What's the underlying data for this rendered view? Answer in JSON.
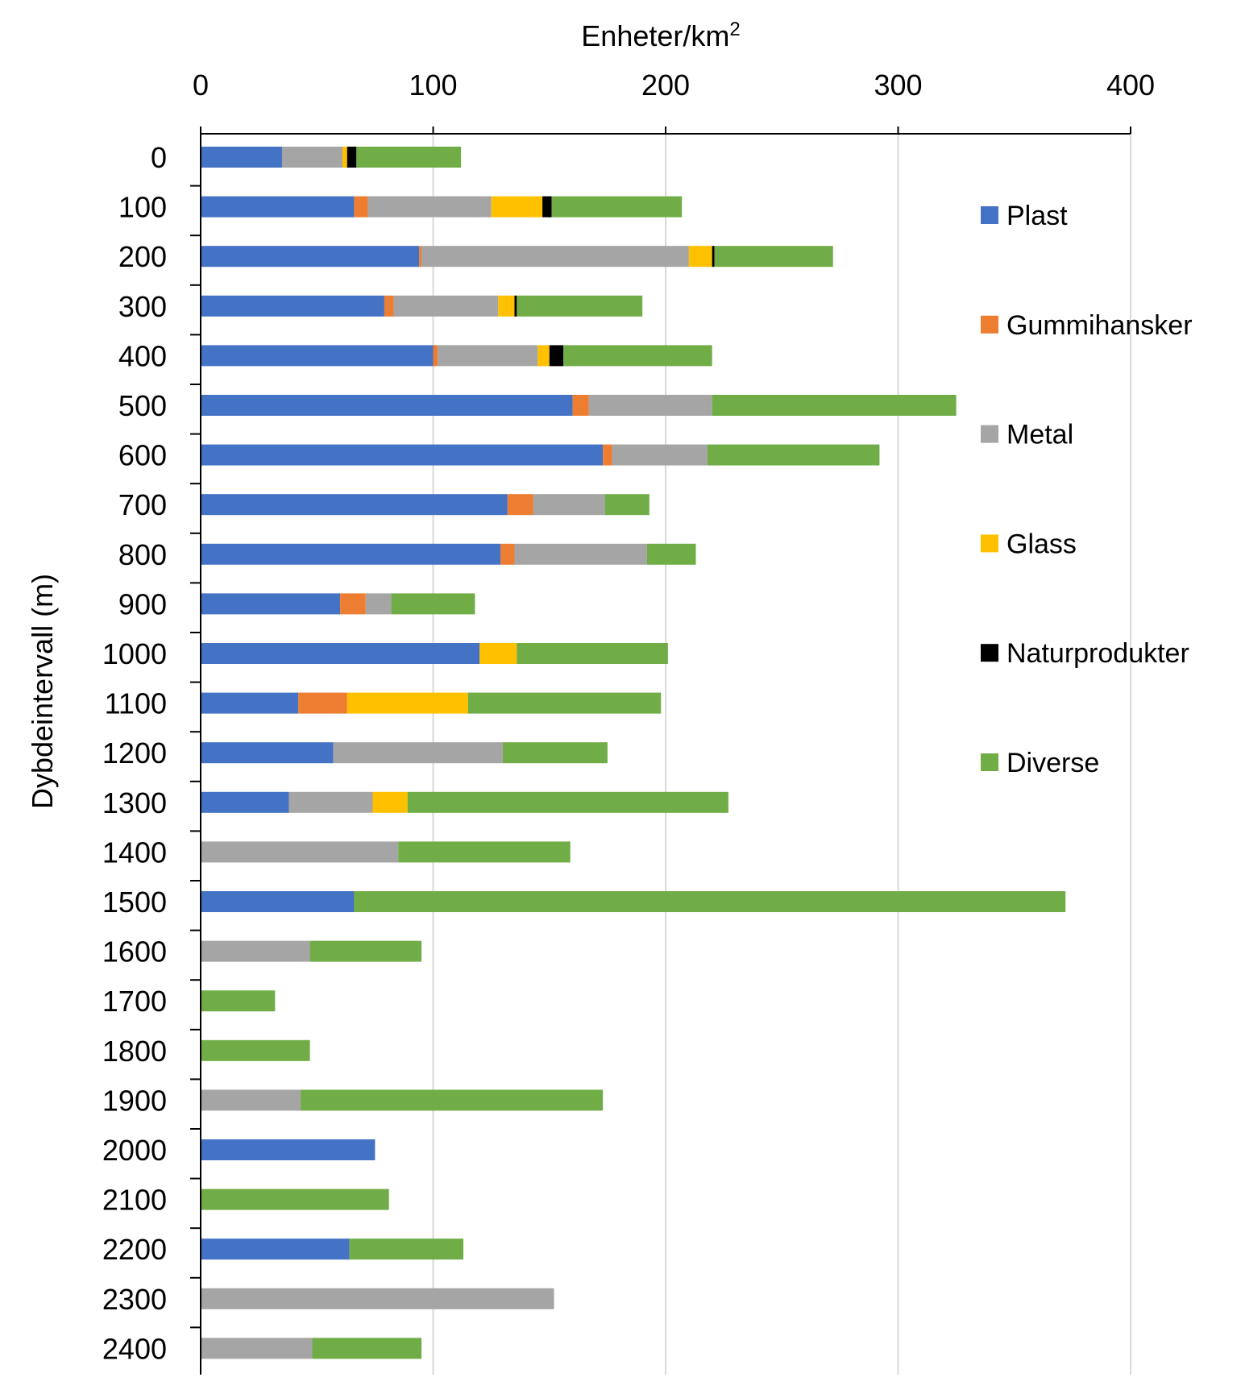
{
  "chart_data": {
    "type": "bar",
    "orientation": "horizontal",
    "stacked": true,
    "title": "",
    "xlabel": "Enheter/km",
    "xlabel_superscript": "2",
    "ylabel": "Dybdeintervall (m)",
    "xlim": [
      0,
      400
    ],
    "xticks": [
      "0",
      "100",
      "200",
      "300",
      "400"
    ],
    "grid": "vertical",
    "legend_position": "right",
    "categories": [
      "0",
      "100",
      "200",
      "300",
      "400",
      "500",
      "600",
      "700",
      "800",
      "900",
      "1000",
      "1100",
      "1200",
      "1300",
      "1400",
      "1500",
      "1600",
      "1700",
      "1800",
      "1900",
      "2000",
      "2100",
      "2200",
      "2300",
      "2400"
    ],
    "series": [
      {
        "name": "Plast",
        "color": "#4472C4",
        "values": [
          35,
          66,
          94,
          79,
          100,
          160,
          173,
          132,
          129,
          60,
          120,
          42,
          57,
          38,
          0,
          66,
          0,
          0,
          0,
          0,
          75,
          0,
          64,
          0,
          0
        ]
      },
      {
        "name": "Gummihansker",
        "color": "#ED7D31",
        "values": [
          0,
          6,
          1,
          4,
          2,
          7,
          4,
          11,
          6,
          11,
          0,
          21,
          0,
          0,
          0,
          0,
          0,
          0,
          0,
          0,
          0,
          0,
          0,
          0,
          0
        ]
      },
      {
        "name": "Metal",
        "color": "#A5A5A5",
        "values": [
          26,
          53,
          115,
          45,
          43,
          53,
          41,
          31,
          57,
          11,
          0,
          0,
          73,
          36,
          85,
          0,
          47,
          0,
          0,
          43,
          0,
          0,
          0,
          152,
          48
        ]
      },
      {
        "name": "Glass",
        "color": "#FFC000",
        "values": [
          2,
          22,
          10,
          7,
          5,
          0,
          0,
          0,
          0,
          0,
          16,
          52,
          0,
          15,
          0,
          0,
          0,
          0,
          0,
          0,
          0,
          0,
          0,
          0,
          0
        ]
      },
      {
        "name": "Naturprodukter",
        "color": "#000000",
        "values": [
          4,
          4,
          1,
          1,
          6,
          0,
          0,
          0,
          0,
          0,
          0,
          0,
          0,
          0,
          0,
          0,
          0,
          0,
          0,
          0,
          0,
          0,
          0,
          0,
          0
        ]
      },
      {
        "name": "Diverse",
        "color": "#70AD47",
        "values": [
          45,
          56,
          51,
          54,
          64,
          105,
          74,
          19,
          21,
          36,
          65,
          83,
          45,
          138,
          74,
          306,
          48,
          32,
          47,
          130,
          0,
          81,
          49,
          0,
          47
        ]
      }
    ]
  }
}
